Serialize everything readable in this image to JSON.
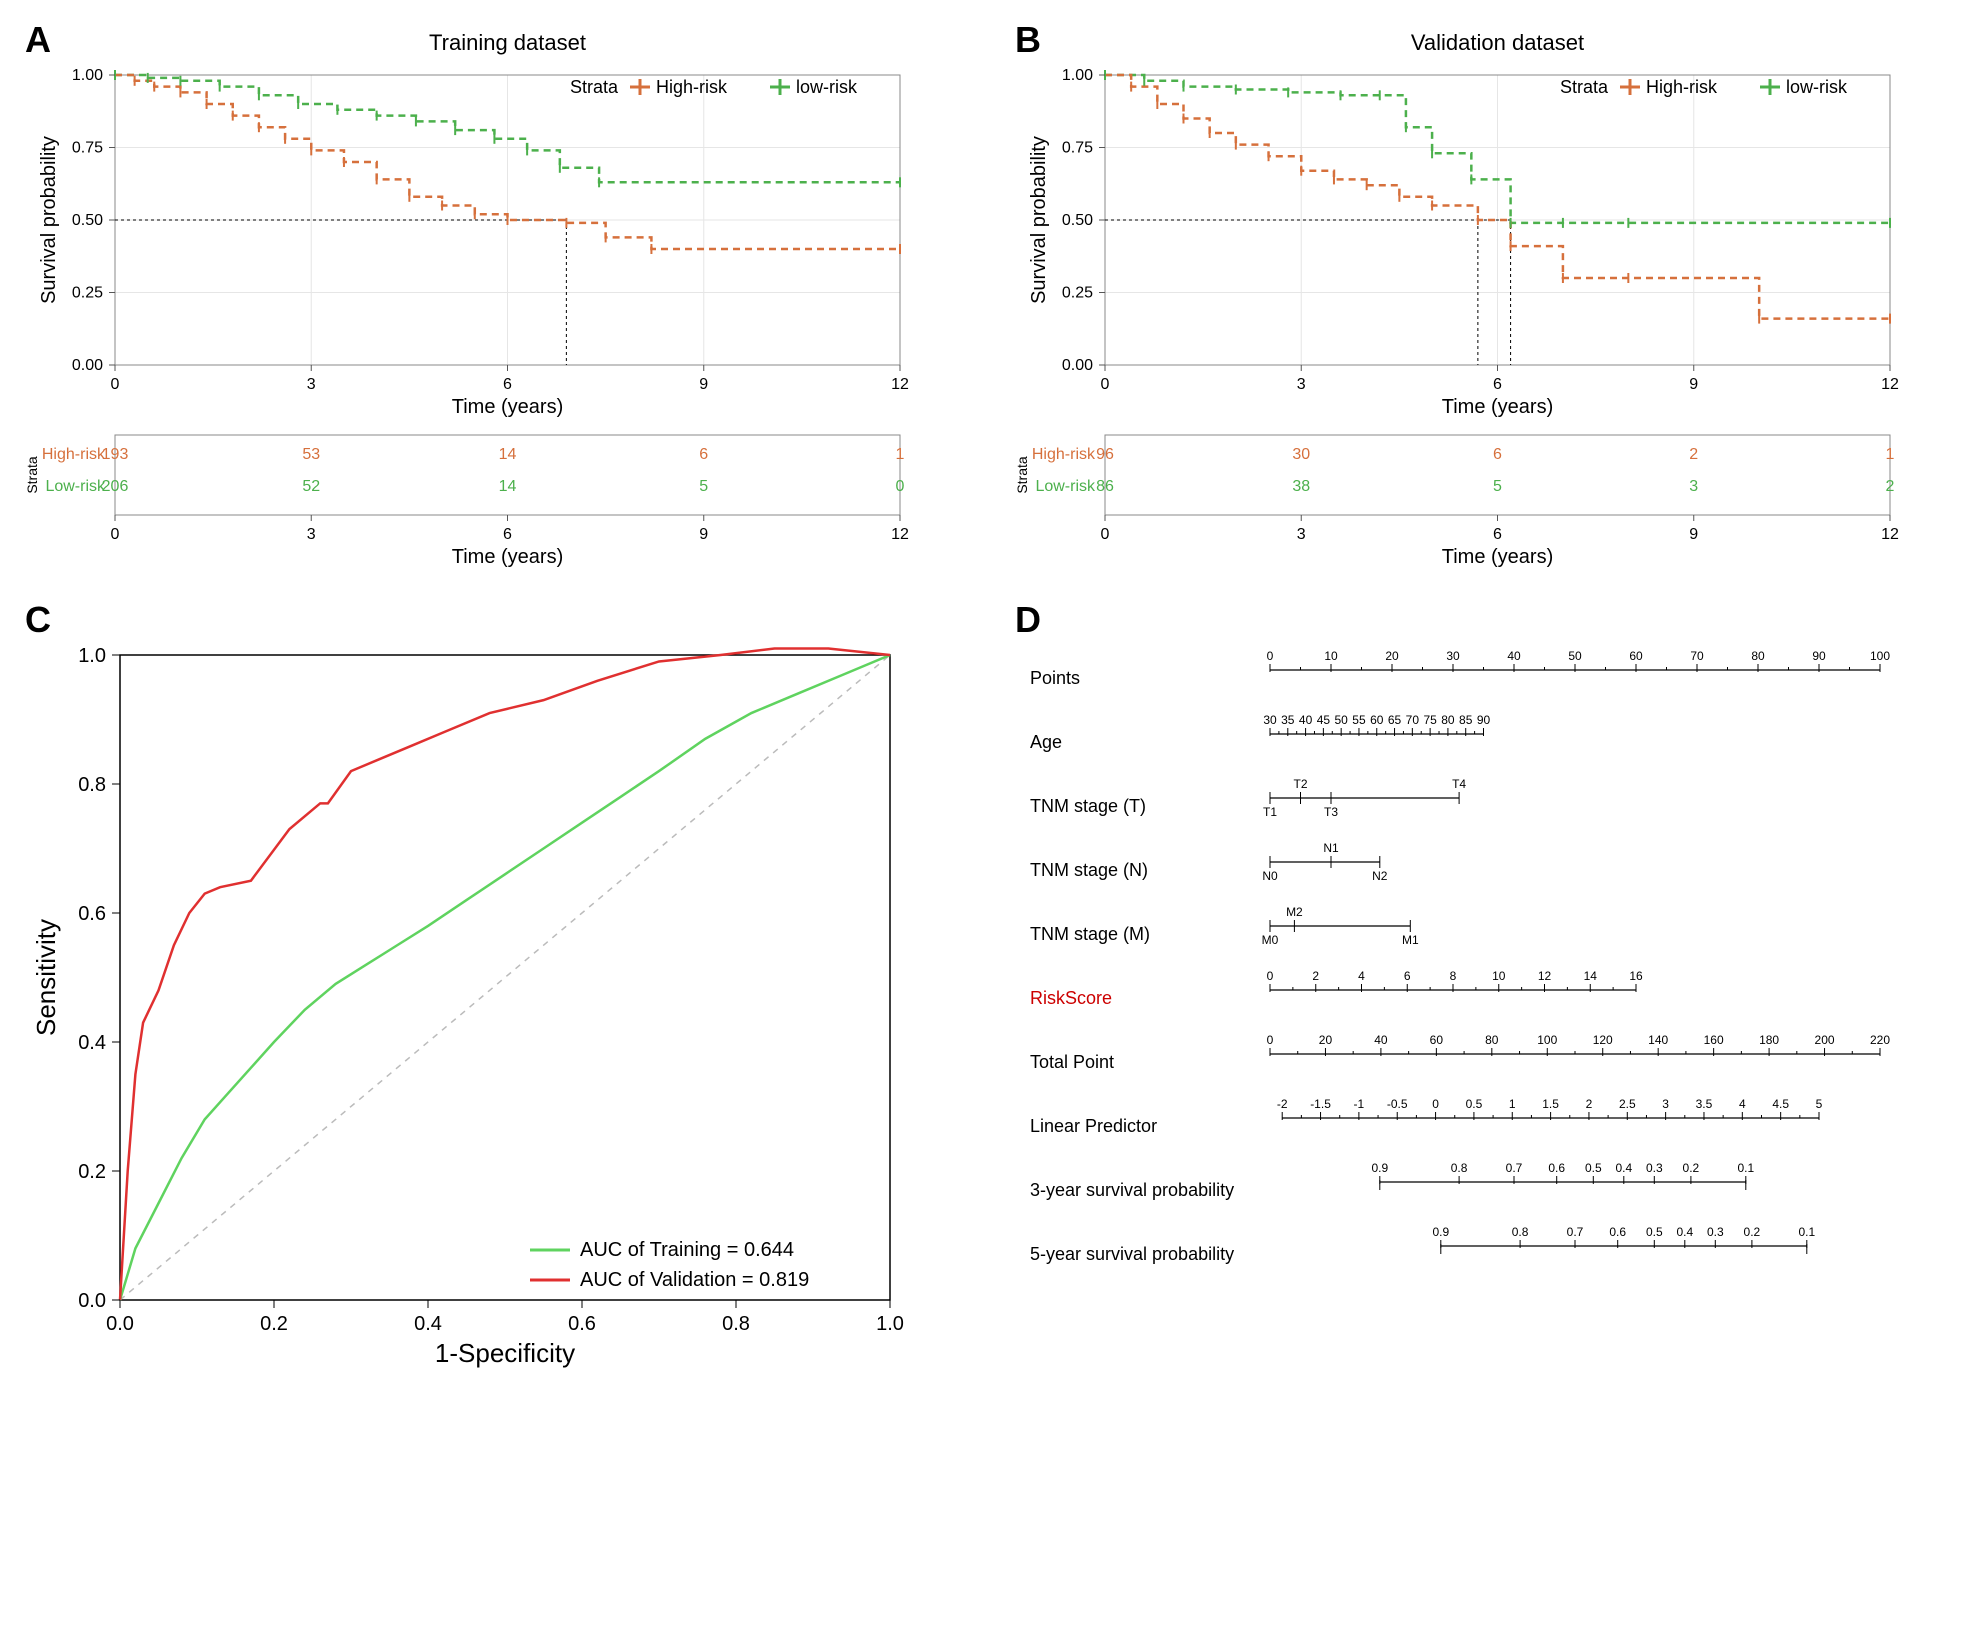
{
  "colors": {
    "high_risk": "#d6703c",
    "low_risk": "#4cb04c",
    "grid": "#e6e6e6",
    "axis": "#555555",
    "black": "#000000",
    "ref_line": "#bbbbbb",
    "roc_train": "#5fd35f",
    "roc_valid": "#e03030",
    "red_text": "#cc0000"
  },
  "panelA": {
    "label": "A",
    "title": "Training dataset",
    "ylabel": "Survival probability",
    "xlabel": "Time (years)",
    "xlim": [
      0,
      12
    ],
    "xticks": [
      0,
      3,
      6,
      9,
      12
    ],
    "ylim": [
      0,
      1
    ],
    "yticks": [
      0,
      0.25,
      0.5,
      0.75,
      1
    ],
    "ytick_labels": [
      "0.00",
      "0.25",
      "0.50",
      "0.75",
      "1.00"
    ],
    "ref_y": 0.5,
    "ref_x": 6.9,
    "legend": {
      "title": "Strata",
      "items": [
        {
          "label": "High-risk",
          "color": "#d6703c"
        },
        {
          "label": "low-risk",
          "color": "#4cb04c"
        }
      ]
    },
    "km": {
      "high": [
        [
          0,
          1.0
        ],
        [
          0.3,
          0.98
        ],
        [
          0.6,
          0.96
        ],
        [
          1.0,
          0.94
        ],
        [
          1.4,
          0.9
        ],
        [
          1.8,
          0.86
        ],
        [
          2.2,
          0.82
        ],
        [
          2.6,
          0.78
        ],
        [
          3.0,
          0.74
        ],
        [
          3.5,
          0.7
        ],
        [
          4.0,
          0.64
        ],
        [
          4.5,
          0.58
        ],
        [
          5.0,
          0.55
        ],
        [
          5.5,
          0.52
        ],
        [
          6.0,
          0.5
        ],
        [
          6.9,
          0.49
        ],
        [
          7.5,
          0.44
        ],
        [
          8.2,
          0.4
        ],
        [
          12,
          0.4
        ]
      ],
      "low": [
        [
          0,
          1.0
        ],
        [
          0.5,
          0.99
        ],
        [
          1.0,
          0.98
        ],
        [
          1.6,
          0.96
        ],
        [
          2.2,
          0.93
        ],
        [
          2.8,
          0.9
        ],
        [
          3.4,
          0.88
        ],
        [
          4.0,
          0.86
        ],
        [
          4.6,
          0.84
        ],
        [
          5.2,
          0.81
        ],
        [
          5.8,
          0.78
        ],
        [
          6.3,
          0.74
        ],
        [
          6.8,
          0.68
        ],
        [
          7.4,
          0.63
        ],
        [
          12,
          0.63
        ]
      ]
    },
    "risk_table": {
      "strata_label": "Strata",
      "rows": [
        {
          "name": "High-risk",
          "color": "#d6703c",
          "vals": [
            193,
            53,
            14,
            6,
            1
          ]
        },
        {
          "name": "Low-risk",
          "color": "#4cb04c",
          "vals": [
            206,
            52,
            14,
            5,
            0
          ]
        }
      ],
      "xlabel": "Time (years)"
    }
  },
  "panelB": {
    "label": "B",
    "title": "Validation dataset",
    "ylabel": "Survival probability",
    "xlabel": "Time (years)",
    "xlim": [
      0,
      12
    ],
    "xticks": [
      0,
      3,
      6,
      9,
      12
    ],
    "ylim": [
      0,
      1
    ],
    "yticks": [
      0,
      0.25,
      0.5,
      0.75,
      1
    ],
    "ytick_labels": [
      "0.00",
      "0.25",
      "0.50",
      "0.75",
      "1.00"
    ],
    "ref_y": 0.5,
    "ref_x1": 5.7,
    "ref_x2": 6.2,
    "legend": {
      "title": "Strata",
      "items": [
        {
          "label": "High-risk",
          "color": "#d6703c"
        },
        {
          "label": "low-risk",
          "color": "#4cb04c"
        }
      ]
    },
    "km": {
      "high": [
        [
          0,
          1.0
        ],
        [
          0.4,
          0.96
        ],
        [
          0.8,
          0.9
        ],
        [
          1.2,
          0.85
        ],
        [
          1.6,
          0.8
        ],
        [
          2.0,
          0.76
        ],
        [
          2.5,
          0.72
        ],
        [
          3.0,
          0.67
        ],
        [
          3.5,
          0.64
        ],
        [
          4.0,
          0.62
        ],
        [
          4.5,
          0.58
        ],
        [
          5.0,
          0.55
        ],
        [
          5.7,
          0.5
        ],
        [
          6.2,
          0.41
        ],
        [
          7.0,
          0.3
        ],
        [
          8.0,
          0.3
        ],
        [
          10.0,
          0.16
        ],
        [
          12,
          0.16
        ]
      ],
      "low": [
        [
          0,
          1.0
        ],
        [
          0.6,
          0.98
        ],
        [
          1.2,
          0.96
        ],
        [
          2.0,
          0.95
        ],
        [
          2.8,
          0.94
        ],
        [
          3.6,
          0.93
        ],
        [
          4.2,
          0.93
        ],
        [
          4.6,
          0.82
        ],
        [
          5.0,
          0.73
        ],
        [
          5.6,
          0.64
        ],
        [
          6.2,
          0.49
        ],
        [
          7.0,
          0.49
        ],
        [
          8.0,
          0.49
        ],
        [
          12,
          0.49
        ]
      ]
    },
    "risk_table": {
      "strata_label": "Strata",
      "rows": [
        {
          "name": "High-risk",
          "color": "#d6703c",
          "vals": [
            96,
            30,
            6,
            2,
            1
          ]
        },
        {
          "name": "Low-risk",
          "color": "#4cb04c",
          "vals": [
            86,
            38,
            5,
            3,
            2
          ]
        }
      ],
      "xlabel": "Time (years)"
    }
  },
  "panelC": {
    "label": "C",
    "ylabel": "Sensitivity",
    "xlabel": "1-Specificity",
    "xlim": [
      0,
      1
    ],
    "xticks": [
      0,
      0.2,
      0.4,
      0.6,
      0.8,
      1
    ],
    "ylim": [
      0,
      1
    ],
    "yticks": [
      0,
      0.2,
      0.4,
      0.6,
      0.8,
      1
    ],
    "xtick_labels": [
      "0.0",
      "0.2",
      "0.4",
      "0.6",
      "0.8",
      "1.0"
    ],
    "ytick_labels": [
      "0.0",
      "0.2",
      "0.4",
      "0.6",
      "0.8",
      "1.0"
    ],
    "legend": [
      {
        "label": "AUC of Training = 0.644",
        "color": "#5fd35f"
      },
      {
        "label": "AUC of Validation = 0.819",
        "color": "#e03030"
      }
    ],
    "roc": {
      "train": [
        [
          0,
          0
        ],
        [
          0.02,
          0.08
        ],
        [
          0.05,
          0.15
        ],
        [
          0.08,
          0.22
        ],
        [
          0.11,
          0.28
        ],
        [
          0.14,
          0.32
        ],
        [
          0.17,
          0.36
        ],
        [
          0.2,
          0.4
        ],
        [
          0.24,
          0.45
        ],
        [
          0.28,
          0.49
        ],
        [
          0.32,
          0.52
        ],
        [
          0.36,
          0.55
        ],
        [
          0.4,
          0.58
        ],
        [
          0.45,
          0.62
        ],
        [
          0.5,
          0.66
        ],
        [
          0.55,
          0.7
        ],
        [
          0.6,
          0.74
        ],
        [
          0.65,
          0.78
        ],
        [
          0.7,
          0.82
        ],
        [
          0.76,
          0.87
        ],
        [
          0.82,
          0.91
        ],
        [
          0.88,
          0.94
        ],
        [
          0.94,
          0.97
        ],
        [
          1,
          1
        ]
      ],
      "valid": [
        [
          0,
          0
        ],
        [
          0.01,
          0.2
        ],
        [
          0.02,
          0.35
        ],
        [
          0.03,
          0.43
        ],
        [
          0.05,
          0.48
        ],
        [
          0.07,
          0.55
        ],
        [
          0.09,
          0.6
        ],
        [
          0.11,
          0.63
        ],
        [
          0.13,
          0.64
        ],
        [
          0.17,
          0.65
        ],
        [
          0.22,
          0.73
        ],
        [
          0.26,
          0.77
        ],
        [
          0.27,
          0.77
        ],
        [
          0.3,
          0.82
        ],
        [
          0.34,
          0.84
        ],
        [
          0.38,
          0.86
        ],
        [
          0.42,
          0.88
        ],
        [
          0.48,
          0.91
        ],
        [
          0.55,
          0.93
        ],
        [
          0.62,
          0.96
        ],
        [
          0.7,
          0.99
        ],
        [
          0.78,
          1.0
        ],
        [
          0.85,
          1.01
        ],
        [
          0.92,
          1.01
        ],
        [
          1,
          1
        ]
      ]
    }
  },
  "panelD": {
    "label": "D",
    "rows": [
      {
        "label": "Points",
        "type": "axis",
        "min": 0,
        "max": 100,
        "step": 10,
        "width": 1.0,
        "offset": 0,
        "color": "#000000"
      },
      {
        "label": "Age",
        "type": "axis",
        "min": 30,
        "max": 90,
        "step": 5,
        "width": 0.35,
        "offset": 0,
        "color": "#000000"
      },
      {
        "label": "TNM stage (T)",
        "type": "categorical",
        "cats": [
          {
            "l": "T1",
            "p": 0.0
          },
          {
            "l": "T2",
            "p": 0.05,
            "top": true
          },
          {
            "l": "T3",
            "p": 0.1
          },
          {
            "l": "T4",
            "p": 0.31,
            "top": true
          }
        ],
        "width": 0.31,
        "offset": 0,
        "color": "#000000"
      },
      {
        "label": "TNM stage (N)",
        "type": "categorical",
        "cats": [
          {
            "l": "N0",
            "p": 0.0
          },
          {
            "l": "N1",
            "p": 0.1,
            "top": true
          },
          {
            "l": "N2",
            "p": 0.18
          }
        ],
        "width": 0.18,
        "offset": 0,
        "color": "#000000"
      },
      {
        "label": "TNM stage (M)",
        "type": "categorical",
        "cats": [
          {
            "l": "M0",
            "p": 0.0
          },
          {
            "l": "M2",
            "p": 0.04,
            "top": true
          },
          {
            "l": "M1",
            "p": 0.23
          }
        ],
        "width": 0.23,
        "offset": 0,
        "color": "#000000"
      },
      {
        "label": "RiskScore",
        "type": "axis",
        "min": 0,
        "max": 16,
        "step": 2,
        "width": 0.6,
        "offset": 0,
        "color": "#000000",
        "label_color": "#cc0000"
      },
      {
        "label": "Total Point",
        "type": "axis",
        "min": 0,
        "max": 220,
        "step": 20,
        "width": 1.0,
        "offset": 0,
        "color": "#000000"
      },
      {
        "label": "Linear Predictor",
        "type": "axis",
        "min": -2,
        "max": 5,
        "step": 0.5,
        "width": 0.88,
        "offset": 0.02,
        "color": "#000000"
      },
      {
        "label": "3-year survival probability",
        "type": "nonlinear",
        "labels": [
          "0.9",
          "0.8",
          "0.7",
          "0.6",
          "0.5",
          "0.4",
          "0.3",
          "0.2",
          "0.1"
        ],
        "positions": [
          0,
          0.13,
          0.22,
          0.29,
          0.35,
          0.4,
          0.45,
          0.51,
          0.6
        ],
        "width": 0.6,
        "offset": 0.18,
        "color": "#000000"
      },
      {
        "label": "5-year survival probability",
        "type": "nonlinear",
        "labels": [
          "0.9",
          "0.8",
          "0.7",
          "0.6",
          "0.5",
          "0.4",
          "0.3",
          "0.2",
          "0.1"
        ],
        "positions": [
          0,
          0.13,
          0.22,
          0.29,
          0.35,
          0.4,
          0.45,
          0.51,
          0.6
        ],
        "width": 0.6,
        "offset": 0.28,
        "color": "#000000"
      }
    ]
  }
}
